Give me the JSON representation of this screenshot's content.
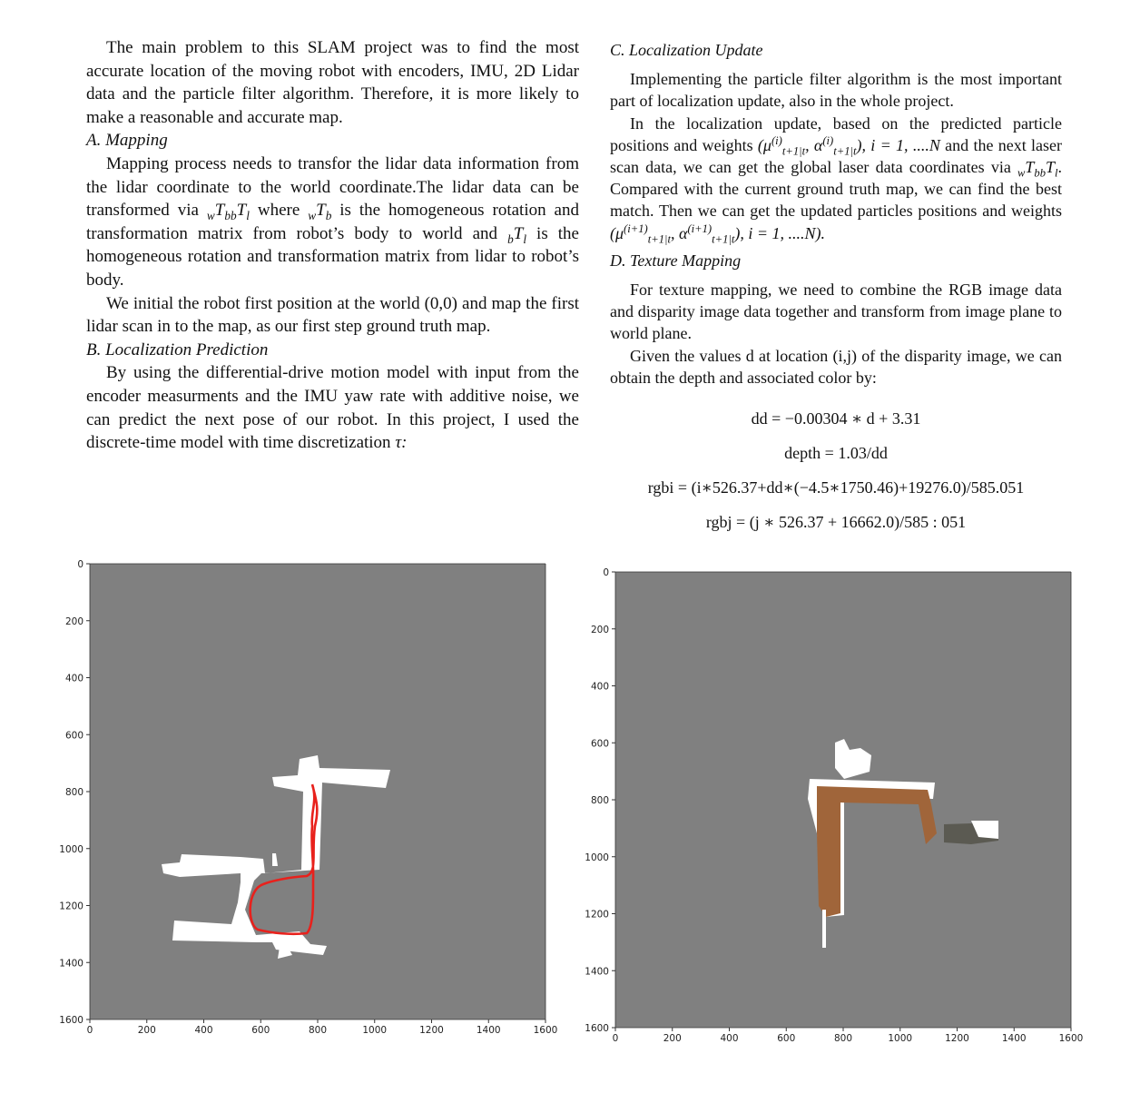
{
  "left_column": {
    "intro": "The main problem to this SLAM project was to find the most accurate location of the moving robot with encoders, IMU, 2D Lidar data and the particle filter algorithm. Therefore, it is more likely to make a reasonable and accurate map.",
    "sec_a_title": "A. Mapping",
    "sec_a_p1_part1": "Mapping process needs to transfor the lidar data information from the lidar coordinate to the world coordinate.The lidar data can be transformed via ",
    "sec_a_p1_math1": "wTbbTl",
    "sec_a_p1_part2": " where ",
    "sec_a_p1_math2": "wTb",
    "sec_a_p1_part3": " is the homogeneous rotation and transformation matrix from robot’s body to world and ",
    "sec_a_p1_math3": "bTl",
    "sec_a_p1_part4": " is the homogeneous rotation and transformation matrix from lidar to robot’s body.",
    "sec_a_p2": "We initial the robot first position at the world (0,0) and map the first lidar scan in to the map, as our first step ground truth map.",
    "sec_b_title": "B. Localization Prediction",
    "sec_b_p1": "By using the differential-drive motion model with input from the encoder measurments and the IMU yaw rate with additive noise, we can predict the next pose of our robot. In this project, I used the discrete-time model with time discretization ",
    "sec_b_tau": "τ:"
  },
  "right_column": {
    "sec_c_title": "C. Localization Update",
    "sec_c_p1": "Implementing the particle filter algorithm is the most important part of localization update, also in the whole project.",
    "sec_c_p2_part1": "In the localization update, based on the predicted particle positions and weights ",
    "sec_c_p2_math1": "(μ(i)t+1|t, α(i)t+1|t), i = 1, ....N",
    "sec_c_p2_part2": " and the next laser scan data, we can get the global laser data coordinates via ",
    "sec_c_p2_math2": "wTbbTl",
    "sec_c_p2_part3": ". Compared with the current ground truth map, we can find the best match. Then we can get the updated particles positions and weights ",
    "sec_c_p2_math3": "(μ(i+1)t+1|t, α(i+1)t+1|t), i = 1, ....N).",
    "sec_d_title": "D. Texture Mapping",
    "sec_d_p1": "For texture mapping, we need to combine the RGB image data and disparity image data together and transform from image plane to world plane.",
    "sec_d_p2": "Given the values d at location (i,j) of the disparity image, we can obtain the depth and associated color by:",
    "equations": [
      "dd = −0.00304 ∗ d + 3.31",
      "depth = 1.03/dd",
      "rgbi = (i∗526.37+dd∗(−4.5∗1750.46)+19276.0)/585.051",
      "rgbj = (j ∗ 526.37 + 16662.0)/585 : 051"
    ]
  },
  "figures": {
    "left_plot": {
      "x_ticks": [
        "0",
        "200",
        "400",
        "600",
        "800",
        "1000",
        "1200",
        "1400",
        "1600"
      ],
      "y_ticks": [
        "0",
        "200",
        "400",
        "600",
        "800",
        "1000",
        "1200",
        "1400",
        "1600"
      ],
      "background_color": "#808080",
      "free_space_color": "#ffffff",
      "trajectory_color": "#e8211c"
    },
    "right_plot": {
      "x_ticks": [
        "0",
        "200",
        "400",
        "600",
        "800",
        "1000",
        "1200",
        "1400",
        "1600"
      ],
      "y_ticks": [
        "0",
        "200",
        "400",
        "600",
        "800",
        "1000",
        "1200",
        "1400",
        "1600"
      ],
      "background_color": "#808080",
      "texture_color": "#a0653a"
    }
  }
}
